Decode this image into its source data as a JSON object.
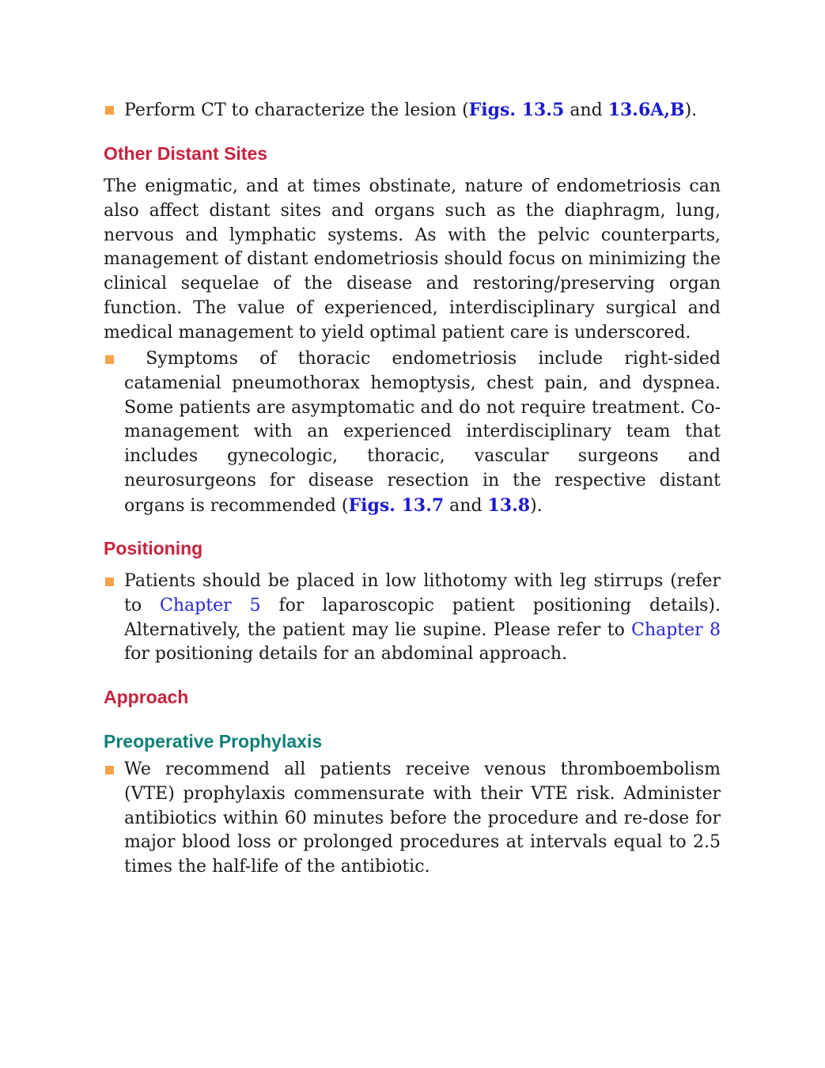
{
  "bullet_ct": [
    "Perform CT to characterize the lesion (",
    "Figs. 13.5",
    " and ",
    "13.6A,B",
    ")."
  ],
  "heading_other": "Other Distant Sites",
  "paragraph_other": "The enigmatic, and at times obstinate, nature of endometriosis can also affect distant sites and organs such as the diaphragm, lung, nervous and lymphatic systems. As with the pelvic counterparts, management of distant endometriosis should focus on minimizing the clinical sequelae of the disease and restoring/preserving organ function. The value of experienced, interdisciplinary surgical and medical management to yield optimal patient care is underscored.",
  "bullet_thoracic": [
    "Symptoms of thoracic endometriosis include right-sided catamenial pneumothorax hemoptysis, chest pain, and dyspnea. Some patients are asymptomatic and do not require treatment. Co-management with an experienced interdisciplinary team that includes gynecologic, thoracic, vascular surgeons and neurosurgeons for disease resection in the respective distant organs is recommended (",
    "Figs. 13.7",
    " and ",
    "13.8",
    ")."
  ],
  "heading_positioning": "Positioning",
  "bullet_positioning": [
    "Patients should be placed in low lithotomy with leg stirrups (refer to ",
    "Chapter 5",
    " for laparoscopic patient positioning details). Alternatively, the patient may lie supine. Please refer to ",
    "Chapter 8",
    " for positioning details for an abdominal approach."
  ],
  "heading_approach": "Approach",
  "subheading_prophylaxis": "Preoperative Prophylaxis",
  "bullet_prophylaxis": [
    "We recommend all patients receive venous thromboembolism (VTE) prophylaxis commensurate with their VTE risk. Administer antibiotics within 60 minutes before the procedure and re-dose for major blood loss or prolonged procedures at intervals equal to 2.5 times the half-life of the antibiotic."
  ]
}
